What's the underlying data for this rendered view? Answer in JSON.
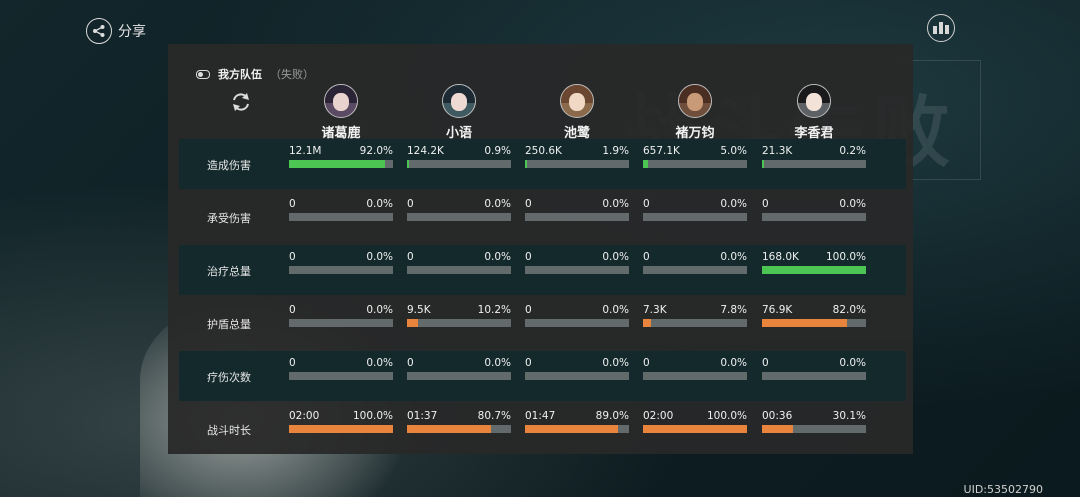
{
  "header": {
    "share_label": "分享"
  },
  "team": {
    "title": "我方队伍",
    "status": "（失败）"
  },
  "characters": [
    {
      "name": "诸葛鹿",
      "avatar_hair": "#2b2336",
      "avatar_face": "#e9d3cf",
      "avatar_bg": "#5a4a63"
    },
    {
      "name": "小语",
      "avatar_hair": "#1d2a33",
      "avatar_face": "#eedad3",
      "avatar_bg": "#3f5a60"
    },
    {
      "name": "池鹭",
      "avatar_hair": "#6b4630",
      "avatar_face": "#f0d8c5",
      "avatar_bg": "#8a6a4a"
    },
    {
      "name": "褚万钧",
      "avatar_hair": "#4a2e22",
      "avatar_face": "#c99a78",
      "avatar_bg": "#6f4f3c"
    },
    {
      "name": "李香君",
      "avatar_hair": "#1a1a1c",
      "avatar_face": "#f2e2d8",
      "avatar_bg": "#5d6064"
    }
  ],
  "colors": {
    "green": "#4cc552",
    "orange": "#e8843c",
    "track": "#626a6b"
  },
  "rows": [
    {
      "label": "造成伤害",
      "highlight": true,
      "color": "green",
      "cells": [
        {
          "value": "12.1M",
          "percent": "92.0%",
          "fraction": 0.92
        },
        {
          "value": "124.2K",
          "percent": "0.9%",
          "fraction": 0.009
        },
        {
          "value": "250.6K",
          "percent": "1.9%",
          "fraction": 0.019
        },
        {
          "value": "657.1K",
          "percent": "5.0%",
          "fraction": 0.05
        },
        {
          "value": "21.3K",
          "percent": "0.2%",
          "fraction": 0.002
        }
      ]
    },
    {
      "label": "承受伤害",
      "highlight": false,
      "color": "green",
      "cells": [
        {
          "value": "0",
          "percent": "0.0%",
          "fraction": 0
        },
        {
          "value": "0",
          "percent": "0.0%",
          "fraction": 0
        },
        {
          "value": "0",
          "percent": "0.0%",
          "fraction": 0
        },
        {
          "value": "0",
          "percent": "0.0%",
          "fraction": 0
        },
        {
          "value": "0",
          "percent": "0.0%",
          "fraction": 0
        }
      ]
    },
    {
      "label": "治疗总量",
      "highlight": true,
      "color": "green",
      "cells": [
        {
          "value": "0",
          "percent": "0.0%",
          "fraction": 0
        },
        {
          "value": "0",
          "percent": "0.0%",
          "fraction": 0
        },
        {
          "value": "0",
          "percent": "0.0%",
          "fraction": 0
        },
        {
          "value": "0",
          "percent": "0.0%",
          "fraction": 0
        },
        {
          "value": "168.0K",
          "percent": "100.0%",
          "fraction": 1.0
        }
      ]
    },
    {
      "label": "护盾总量",
      "highlight": false,
      "color": "orange",
      "cells": [
        {
          "value": "0",
          "percent": "0.0%",
          "fraction": 0
        },
        {
          "value": "9.5K",
          "percent": "10.2%",
          "fraction": 0.102
        },
        {
          "value": "0",
          "percent": "0.0%",
          "fraction": 0
        },
        {
          "value": "7.3K",
          "percent": "7.8%",
          "fraction": 0.078
        },
        {
          "value": "76.9K",
          "percent": "82.0%",
          "fraction": 0.82
        }
      ]
    },
    {
      "label": "疗伤次数",
      "highlight": true,
      "color": "orange",
      "cells": [
        {
          "value": "0",
          "percent": "0.0%",
          "fraction": 0
        },
        {
          "value": "0",
          "percent": "0.0%",
          "fraction": 0
        },
        {
          "value": "0",
          "percent": "0.0%",
          "fraction": 0
        },
        {
          "value": "0",
          "percent": "0.0%",
          "fraction": 0
        },
        {
          "value": "0",
          "percent": "0.0%",
          "fraction": 0
        }
      ]
    },
    {
      "label": "战斗时长",
      "highlight": false,
      "color": "orange",
      "cells": [
        {
          "value": "02:00",
          "percent": "100.0%",
          "fraction": 1.0
        },
        {
          "value": "01:37",
          "percent": "80.7%",
          "fraction": 0.807
        },
        {
          "value": "01:47",
          "percent": "89.0%",
          "fraction": 0.89
        },
        {
          "value": "02:00",
          "percent": "100.0%",
          "fraction": 1.0
        },
        {
          "value": "00:36",
          "percent": "30.1%",
          "fraction": 0.301
        }
      ]
    }
  ],
  "footer": {
    "uid": "UID:53502790"
  }
}
